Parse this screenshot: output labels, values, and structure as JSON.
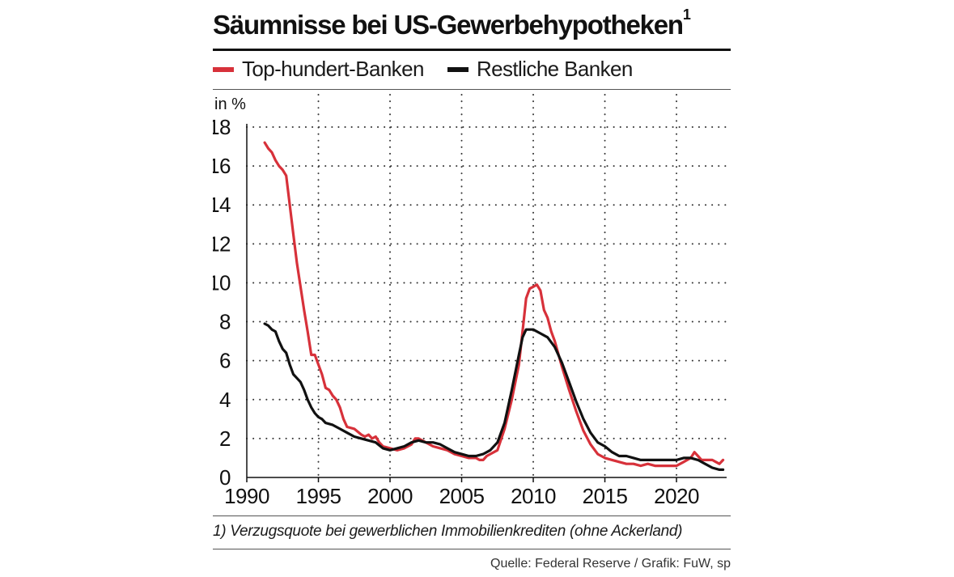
{
  "colors": {
    "top_banks": "#d7313a",
    "other_banks": "#111111",
    "grid": "#333333"
  },
  "chart_data": {
    "type": "line",
    "title": "Säumnisse bei US-Gewerbehypotheken",
    "title_footnote": "1",
    "ylabel": "in %",
    "xlabel": "",
    "xlim": [
      1990,
      2023.5
    ],
    "ylim": [
      0,
      18
    ],
    "x_ticks": [
      1990,
      1995,
      2000,
      2005,
      2010,
      2015,
      2020
    ],
    "y_ticks": [
      0,
      2,
      4,
      6,
      8,
      10,
      12,
      14,
      16,
      18
    ],
    "legend_position": "top",
    "series": [
      {
        "name": "Top-hundert-Banken",
        "color": "#d7313a",
        "points": [
          [
            1991.25,
            17.2
          ],
          [
            1991.5,
            16.9
          ],
          [
            1991.75,
            16.7
          ],
          [
            1992.0,
            16.3
          ],
          [
            1992.25,
            16.0
          ],
          [
            1992.5,
            15.8
          ],
          [
            1992.75,
            15.5
          ],
          [
            1993.0,
            14.0
          ],
          [
            1993.25,
            12.5
          ],
          [
            1993.5,
            11.0
          ],
          [
            1993.75,
            9.8
          ],
          [
            1994.0,
            8.6
          ],
          [
            1994.25,
            7.5
          ],
          [
            1994.5,
            6.3
          ],
          [
            1994.75,
            6.3
          ],
          [
            1995.0,
            5.8
          ],
          [
            1995.25,
            5.3
          ],
          [
            1995.5,
            4.6
          ],
          [
            1995.75,
            4.5
          ],
          [
            1996.0,
            4.2
          ],
          [
            1996.25,
            4.0
          ],
          [
            1996.5,
            3.6
          ],
          [
            1996.75,
            3.0
          ],
          [
            1997.0,
            2.6
          ],
          [
            1997.5,
            2.5
          ],
          [
            1998.0,
            2.2
          ],
          [
            1998.25,
            2.1
          ],
          [
            1998.5,
            2.2
          ],
          [
            1998.75,
            2.0
          ],
          [
            1999.0,
            2.1
          ],
          [
            1999.25,
            1.8
          ],
          [
            1999.5,
            1.6
          ],
          [
            2000.0,
            1.5
          ],
          [
            2000.5,
            1.4
          ],
          [
            2001.0,
            1.5
          ],
          [
            2001.5,
            1.7
          ],
          [
            2001.75,
            2.0
          ],
          [
            2002.0,
            2.0
          ],
          [
            2002.5,
            1.8
          ],
          [
            2003.0,
            1.6
          ],
          [
            2003.5,
            1.5
          ],
          [
            2004.0,
            1.4
          ],
          [
            2004.5,
            1.2
          ],
          [
            2005.0,
            1.1
          ],
          [
            2005.5,
            1.0
          ],
          [
            2006.0,
            1.0
          ],
          [
            2006.25,
            0.9
          ],
          [
            2006.5,
            0.9
          ],
          [
            2006.75,
            1.1
          ],
          [
            2007.0,
            1.2
          ],
          [
            2007.5,
            1.4
          ],
          [
            2008.0,
            2.5
          ],
          [
            2008.5,
            4.0
          ],
          [
            2009.0,
            5.8
          ],
          [
            2009.25,
            7.5
          ],
          [
            2009.5,
            9.2
          ],
          [
            2009.75,
            9.7
          ],
          [
            2010.0,
            9.8
          ],
          [
            2010.25,
            9.9
          ],
          [
            2010.5,
            9.6
          ],
          [
            2010.75,
            8.6
          ],
          [
            2011.0,
            8.2
          ],
          [
            2011.25,
            7.5
          ],
          [
            2011.5,
            7.0
          ],
          [
            2012.0,
            5.7
          ],
          [
            2012.5,
            4.5
          ],
          [
            2013.0,
            3.4
          ],
          [
            2013.5,
            2.4
          ],
          [
            2014.0,
            1.7
          ],
          [
            2014.5,
            1.2
          ],
          [
            2015.0,
            1.0
          ],
          [
            2015.5,
            0.9
          ],
          [
            2016.0,
            0.8
          ],
          [
            2016.5,
            0.7
          ],
          [
            2017.0,
            0.7
          ],
          [
            2017.5,
            0.6
          ],
          [
            2018.0,
            0.7
          ],
          [
            2018.5,
            0.6
          ],
          [
            2019.0,
            0.6
          ],
          [
            2019.5,
            0.6
          ],
          [
            2020.0,
            0.6
          ],
          [
            2020.5,
            0.8
          ],
          [
            2021.0,
            1.0
          ],
          [
            2021.25,
            1.3
          ],
          [
            2021.5,
            1.1
          ],
          [
            2021.75,
            0.9
          ],
          [
            2022.0,
            0.9
          ],
          [
            2022.5,
            0.9
          ],
          [
            2022.75,
            0.8
          ],
          [
            2023.0,
            0.7
          ],
          [
            2023.25,
            0.9
          ]
        ]
      },
      {
        "name": "Restliche Banken",
        "color": "#111111",
        "points": [
          [
            1991.25,
            7.9
          ],
          [
            1991.5,
            7.8
          ],
          [
            1991.75,
            7.6
          ],
          [
            1992.0,
            7.5
          ],
          [
            1992.25,
            7.0
          ],
          [
            1992.5,
            6.6
          ],
          [
            1992.75,
            6.4
          ],
          [
            1993.0,
            5.8
          ],
          [
            1993.25,
            5.3
          ],
          [
            1993.5,
            5.1
          ],
          [
            1993.75,
            4.9
          ],
          [
            1994.0,
            4.5
          ],
          [
            1994.25,
            4.0
          ],
          [
            1994.5,
            3.6
          ],
          [
            1994.75,
            3.3
          ],
          [
            1995.0,
            3.1
          ],
          [
            1995.25,
            3.0
          ],
          [
            1995.5,
            2.8
          ],
          [
            1996.0,
            2.7
          ],
          [
            1996.5,
            2.5
          ],
          [
            1997.0,
            2.3
          ],
          [
            1997.5,
            2.1
          ],
          [
            1998.0,
            2.0
          ],
          [
            1998.5,
            1.9
          ],
          [
            1999.0,
            1.8
          ],
          [
            1999.5,
            1.5
          ],
          [
            2000.0,
            1.4
          ],
          [
            2000.5,
            1.5
          ],
          [
            2001.0,
            1.6
          ],
          [
            2001.5,
            1.8
          ],
          [
            2002.0,
            1.9
          ],
          [
            2002.5,
            1.8
          ],
          [
            2003.0,
            1.8
          ],
          [
            2003.5,
            1.7
          ],
          [
            2004.0,
            1.5
          ],
          [
            2004.5,
            1.3
          ],
          [
            2005.0,
            1.2
          ],
          [
            2005.5,
            1.1
          ],
          [
            2006.0,
            1.1
          ],
          [
            2006.5,
            1.2
          ],
          [
            2007.0,
            1.4
          ],
          [
            2007.5,
            1.8
          ],
          [
            2008.0,
            2.8
          ],
          [
            2008.5,
            4.5
          ],
          [
            2009.0,
            6.3
          ],
          [
            2009.25,
            7.2
          ],
          [
            2009.5,
            7.6
          ],
          [
            2010.0,
            7.6
          ],
          [
            2010.5,
            7.4
          ],
          [
            2011.0,
            7.2
          ],
          [
            2011.5,
            6.7
          ],
          [
            2012.0,
            5.9
          ],
          [
            2012.5,
            4.9
          ],
          [
            2013.0,
            3.9
          ],
          [
            2013.5,
            3.0
          ],
          [
            2014.0,
            2.3
          ],
          [
            2014.5,
            1.8
          ],
          [
            2015.0,
            1.6
          ],
          [
            2015.5,
            1.3
          ],
          [
            2016.0,
            1.1
          ],
          [
            2016.5,
            1.1
          ],
          [
            2017.0,
            1.0
          ],
          [
            2017.5,
            0.9
          ],
          [
            2018.0,
            0.9
          ],
          [
            2018.5,
            0.9
          ],
          [
            2019.0,
            0.9
          ],
          [
            2019.5,
            0.9
          ],
          [
            2020.0,
            0.9
          ],
          [
            2020.5,
            1.0
          ],
          [
            2021.0,
            1.0
          ],
          [
            2021.5,
            0.9
          ],
          [
            2022.0,
            0.7
          ],
          [
            2022.5,
            0.5
          ],
          [
            2023.0,
            0.4
          ],
          [
            2023.25,
            0.4
          ]
        ]
      }
    ]
  },
  "footnote": "1) Verzugsquote bei gewerblichen Immobilienkrediten (ohne Ackerland)",
  "source": "Quelle: Federal Reserve / Grafik: FuW, sp"
}
